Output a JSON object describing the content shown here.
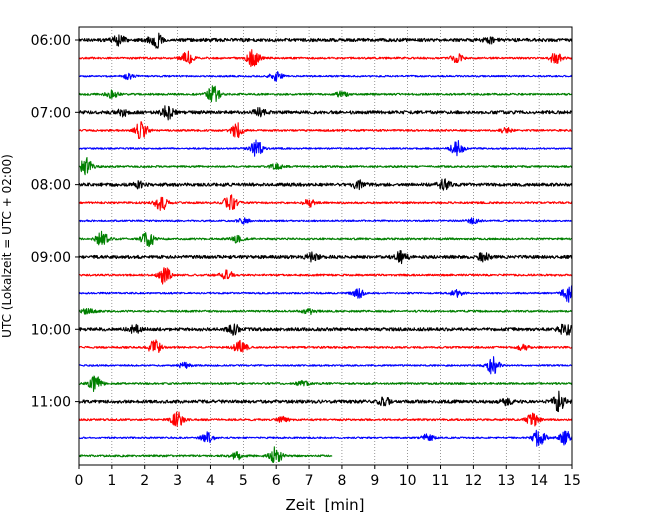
{
  "chart_data": {
    "type": "line",
    "title": "",
    "xlabel": "Zeit  [min]",
    "ylabel": "UTC (Lokalzeit = UTC + 02:00)",
    "xlim": [
      0,
      15
    ],
    "x_ticks": [
      "0",
      "1",
      "2",
      "3",
      "4",
      "5",
      "6",
      "7",
      "8",
      "9",
      "10",
      "11",
      "12",
      "13",
      "14",
      "15"
    ],
    "y_ticks": [
      "06:00",
      "07:00",
      "08:00",
      "09:00",
      "10:00",
      "11:00"
    ],
    "grid": "vertical dotted",
    "trace_interval_minutes": 15,
    "series": [
      {
        "name": "06:00",
        "color": "#000000",
        "end_min": 15,
        "amp": 1.0,
        "events": [
          [
            2.3,
            1.0
          ],
          [
            1.2,
            0.5
          ],
          [
            12.5,
            0.3
          ]
        ]
      },
      {
        "name": "06:15",
        "color": "#ff0000",
        "end_min": 15,
        "amp": 0.6,
        "events": [
          [
            5.3,
            1.0
          ],
          [
            3.3,
            0.7
          ],
          [
            11.5,
            0.5
          ],
          [
            14.5,
            0.6
          ]
        ]
      },
      {
        "name": "06:30",
        "color": "#0000ff",
        "end_min": 15,
        "amp": 0.5,
        "events": [
          [
            6.0,
            0.5
          ],
          [
            1.5,
            0.3
          ]
        ]
      },
      {
        "name": "06:45",
        "color": "#008000",
        "end_min": 15,
        "amp": 0.6,
        "events": [
          [
            4.1,
            1.0
          ],
          [
            1.0,
            0.4
          ],
          [
            8.0,
            0.3
          ]
        ]
      },
      {
        "name": "07:00",
        "color": "#000000",
        "end_min": 15,
        "amp": 1.0,
        "events": [
          [
            2.7,
            0.7
          ],
          [
            5.5,
            0.4
          ],
          [
            1.3,
            0.5
          ]
        ]
      },
      {
        "name": "07:15",
        "color": "#ff0000",
        "end_min": 15,
        "amp": 0.6,
        "events": [
          [
            1.9,
            1.0
          ],
          [
            4.8,
            0.8
          ],
          [
            13.0,
            0.3
          ]
        ]
      },
      {
        "name": "07:30",
        "color": "#0000ff",
        "end_min": 15,
        "amp": 0.5,
        "events": [
          [
            5.4,
            0.9
          ],
          [
            11.5,
            0.9
          ]
        ]
      },
      {
        "name": "07:45",
        "color": "#008000",
        "end_min": 15,
        "amp": 0.6,
        "events": [
          [
            0.2,
            1.0
          ],
          [
            6.0,
            0.3
          ]
        ]
      },
      {
        "name": "08:00",
        "color": "#000000",
        "end_min": 15,
        "amp": 1.0,
        "events": [
          [
            8.5,
            0.4
          ],
          [
            11.1,
            0.5
          ],
          [
            1.8,
            0.3
          ]
        ]
      },
      {
        "name": "08:15",
        "color": "#ff0000",
        "end_min": 15,
        "amp": 0.6,
        "events": [
          [
            2.5,
            0.9
          ],
          [
            4.6,
            1.0
          ],
          [
            7.0,
            0.4
          ]
        ]
      },
      {
        "name": "08:30",
        "color": "#0000ff",
        "end_min": 15,
        "amp": 0.5,
        "events": [
          [
            5.0,
            0.3
          ],
          [
            12.0,
            0.3
          ]
        ]
      },
      {
        "name": "08:45",
        "color": "#008000",
        "end_min": 15,
        "amp": 0.6,
        "events": [
          [
            2.1,
            1.0
          ],
          [
            0.7,
            0.8
          ],
          [
            4.8,
            0.4
          ]
        ]
      },
      {
        "name": "09:00",
        "color": "#000000",
        "end_min": 15,
        "amp": 1.0,
        "events": [
          [
            9.8,
            0.6
          ],
          [
            7.1,
            0.4
          ],
          [
            12.3,
            0.4
          ]
        ]
      },
      {
        "name": "09:15",
        "color": "#ff0000",
        "end_min": 15,
        "amp": 0.6,
        "events": [
          [
            2.6,
            1.0
          ],
          [
            4.5,
            0.5
          ]
        ]
      },
      {
        "name": "09:30",
        "color": "#0000ff",
        "end_min": 15,
        "amp": 0.5,
        "events": [
          [
            14.9,
            1.0
          ],
          [
            8.5,
            0.5
          ],
          [
            11.5,
            0.4
          ]
        ]
      },
      {
        "name": "09:45",
        "color": "#008000",
        "end_min": 15,
        "amp": 0.6,
        "events": [
          [
            0.3,
            0.4
          ],
          [
            7.0,
            0.3
          ]
        ]
      },
      {
        "name": "10:00",
        "color": "#000000",
        "end_min": 15,
        "amp": 1.0,
        "events": [
          [
            4.7,
            0.5
          ],
          [
            14.8,
            0.8
          ],
          [
            1.7,
            0.4
          ]
        ]
      },
      {
        "name": "10:15",
        "color": "#ff0000",
        "end_min": 15,
        "amp": 0.6,
        "events": [
          [
            2.3,
            0.8
          ],
          [
            4.9,
            0.8
          ],
          [
            13.5,
            0.3
          ]
        ]
      },
      {
        "name": "10:30",
        "color": "#0000ff",
        "end_min": 15,
        "amp": 0.5,
        "events": [
          [
            12.6,
            1.0
          ],
          [
            3.2,
            0.3
          ]
        ]
      },
      {
        "name": "10:45",
        "color": "#008000",
        "end_min": 15,
        "amp": 0.6,
        "events": [
          [
            0.5,
            0.9
          ],
          [
            6.8,
            0.3
          ]
        ]
      },
      {
        "name": "11:00",
        "color": "#000000",
        "end_min": 15,
        "amp": 1.0,
        "events": [
          [
            14.6,
            1.0
          ],
          [
            9.3,
            0.4
          ],
          [
            13.0,
            0.3
          ]
        ]
      },
      {
        "name": "11:15",
        "color": "#ff0000",
        "end_min": 15,
        "amp": 0.6,
        "events": [
          [
            3.0,
            0.8
          ],
          [
            13.8,
            0.7
          ],
          [
            6.2,
            0.3
          ]
        ]
      },
      {
        "name": "11:30",
        "color": "#0000ff",
        "end_min": 15,
        "amp": 0.5,
        "events": [
          [
            14.0,
            1.0
          ],
          [
            14.8,
            0.8
          ],
          [
            3.9,
            0.6
          ],
          [
            10.6,
            0.4
          ]
        ]
      },
      {
        "name": "11:45",
        "color": "#008000",
        "end_min": 7.7,
        "amp": 0.6,
        "events": [
          [
            6.0,
            1.0
          ],
          [
            4.8,
            0.4
          ]
        ]
      }
    ]
  }
}
